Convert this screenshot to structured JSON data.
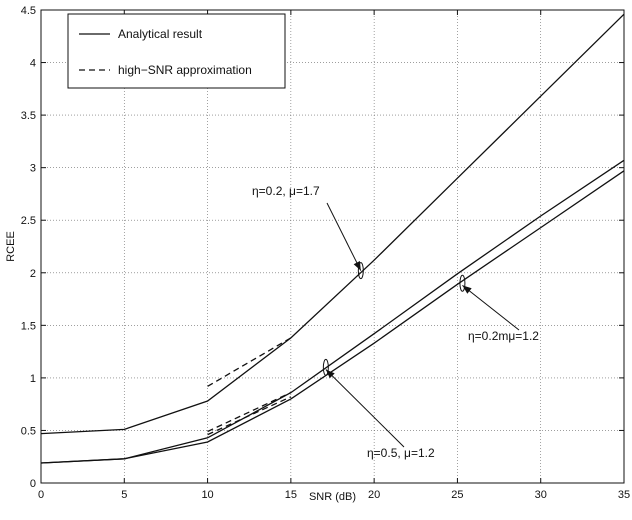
{
  "chart_data": {
    "type": "line",
    "title": "",
    "xlabel": "SNR (dB)",
    "ylabel": "RCEE",
    "xlim": [
      0,
      35
    ],
    "ylim": [
      0,
      4.5
    ],
    "xticks": [
      0,
      5,
      10,
      15,
      20,
      25,
      30,
      35
    ],
    "yticks": [
      0,
      0.5,
      1,
      1.5,
      2,
      2.5,
      3,
      3.5,
      4,
      4.5
    ],
    "grid": true,
    "legend": {
      "placement": "top-left",
      "entries": [
        {
          "label": "Analytical result",
          "style": "solid"
        },
        {
          "label": "high−SNR approximation",
          "style": "dashed"
        }
      ]
    },
    "series": [
      {
        "style": "solid",
        "x": [
          0,
          5,
          10,
          15,
          20,
          25,
          30,
          35
        ],
        "y": [
          0.47,
          0.51,
          0.78,
          1.38,
          2.12,
          2.9,
          3.68,
          4.46
        ]
      },
      {
        "style": "solid",
        "x": [
          0,
          5,
          10,
          15,
          20,
          25,
          30,
          35
        ],
        "y": [
          0.19,
          0.23,
          0.43,
          0.86,
          1.42,
          1.99,
          2.54,
          3.07
        ]
      },
      {
        "style": "solid",
        "x": [
          0,
          5,
          10,
          15,
          20,
          25,
          30,
          35
        ],
        "y": [
          0.19,
          0.23,
          0.39,
          0.8,
          1.33,
          1.89,
          2.43,
          2.97
        ]
      },
      {
        "style": "dashed",
        "x": [
          10,
          15
        ],
        "y": [
          0.92,
          1.38
        ]
      },
      {
        "style": "dashed",
        "x": [
          10,
          15
        ],
        "y": [
          0.49,
          0.86
        ]
      },
      {
        "style": "dashed",
        "x": [
          10,
          15
        ],
        "y": [
          0.46,
          0.82
        ]
      }
    ],
    "annotations": [
      {
        "text": "η=0.2, μ=1.7",
        "target": {
          "x": 19.2,
          "y": 2.02
        },
        "ellipse": {
          "x": 19.2,
          "y": 2.02
        }
      },
      {
        "text": "η=0.2mμ=1.2",
        "target": {
          "x": 25.3,
          "y": 1.88
        },
        "ellipse": {
          "x": 25.3,
          "y": 1.9
        }
      },
      {
        "text": "η=0.5, μ=1.2",
        "target": {
          "x": 17.1,
          "y": 1.08
        },
        "ellipse": {
          "x": 17.1,
          "y": 1.1
        }
      }
    ]
  }
}
